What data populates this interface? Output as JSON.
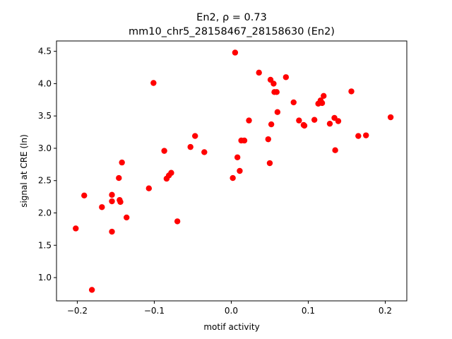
{
  "chart_data": {
    "type": "scatter",
    "title_line1": "En2, ρ = 0.73",
    "title_line2": "mm10_chr5_28158467_28158630 (En2)",
    "xlabel": "motif activity",
    "ylabel": "signal at CRE (ln)",
    "xlim": [
      -0.227,
      0.228
    ],
    "ylim": [
      0.64,
      4.66
    ],
    "xticks": [
      -0.2,
      -0.1,
      0.0,
      0.1,
      0.2
    ],
    "xtick_labels": [
      "−0.2",
      "−0.1",
      "0.0",
      "0.1",
      "0.2"
    ],
    "yticks": [
      1.0,
      1.5,
      2.0,
      2.5,
      3.0,
      3.5,
      4.0,
      4.5
    ],
    "ytick_labels": [
      "1.0",
      "1.5",
      "2.0",
      "2.5",
      "3.0",
      "3.5",
      "4.0",
      "4.5"
    ],
    "grid": false,
    "marker_color": "#ff0000",
    "points": [
      {
        "x": -0.202,
        "y": 1.76
      },
      {
        "x": -0.191,
        "y": 2.27
      },
      {
        "x": -0.181,
        "y": 0.81
      },
      {
        "x": -0.168,
        "y": 2.09
      },
      {
        "x": -0.155,
        "y": 2.28
      },
      {
        "x": -0.155,
        "y": 2.18
      },
      {
        "x": -0.155,
        "y": 1.71
      },
      {
        "x": -0.146,
        "y": 2.54
      },
      {
        "x": -0.145,
        "y": 2.2
      },
      {
        "x": -0.144,
        "y": 2.17
      },
      {
        "x": -0.142,
        "y": 2.78
      },
      {
        "x": -0.136,
        "y": 1.93
      },
      {
        "x": -0.107,
        "y": 2.38
      },
      {
        "x": -0.101,
        "y": 4.01
      },
      {
        "x": -0.087,
        "y": 2.96
      },
      {
        "x": -0.084,
        "y": 2.53
      },
      {
        "x": -0.081,
        "y": 2.58
      },
      {
        "x": -0.078,
        "y": 2.62
      },
      {
        "x": -0.07,
        "y": 1.87
      },
      {
        "x": -0.053,
        "y": 3.02
      },
      {
        "x": -0.047,
        "y": 3.19
      },
      {
        "x": -0.035,
        "y": 2.94
      },
      {
        "x": 0.002,
        "y": 2.54
      },
      {
        "x": 0.005,
        "y": 4.48
      },
      {
        "x": 0.008,
        "y": 2.86
      },
      {
        "x": 0.011,
        "y": 2.65
      },
      {
        "x": 0.013,
        "y": 3.12
      },
      {
        "x": 0.017,
        "y": 3.12
      },
      {
        "x": 0.023,
        "y": 3.43
      },
      {
        "x": 0.036,
        "y": 4.17
      },
      {
        "x": 0.048,
        "y": 3.14
      },
      {
        "x": 0.05,
        "y": 2.77
      },
      {
        "x": 0.051,
        "y": 4.06
      },
      {
        "x": 0.052,
        "y": 3.37
      },
      {
        "x": 0.055,
        "y": 4.0
      },
      {
        "x": 0.056,
        "y": 3.87
      },
      {
        "x": 0.059,
        "y": 3.87
      },
      {
        "x": 0.06,
        "y": 3.56
      },
      {
        "x": 0.071,
        "y": 4.1
      },
      {
        "x": 0.081,
        "y": 3.71
      },
      {
        "x": 0.088,
        "y": 3.43
      },
      {
        "x": 0.094,
        "y": 3.36
      },
      {
        "x": 0.095,
        "y": 3.35
      },
      {
        "x": 0.108,
        "y": 3.44
      },
      {
        "x": 0.113,
        "y": 3.69
      },
      {
        "x": 0.116,
        "y": 3.74
      },
      {
        "x": 0.118,
        "y": 3.7
      },
      {
        "x": 0.12,
        "y": 3.81
      },
      {
        "x": 0.128,
        "y": 3.38
      },
      {
        "x": 0.134,
        "y": 3.47
      },
      {
        "x": 0.135,
        "y": 2.97
      },
      {
        "x": 0.139,
        "y": 3.42
      },
      {
        "x": 0.156,
        "y": 3.88
      },
      {
        "x": 0.165,
        "y": 3.19
      },
      {
        "x": 0.175,
        "y": 3.2
      },
      {
        "x": 0.207,
        "y": 3.48
      }
    ]
  }
}
